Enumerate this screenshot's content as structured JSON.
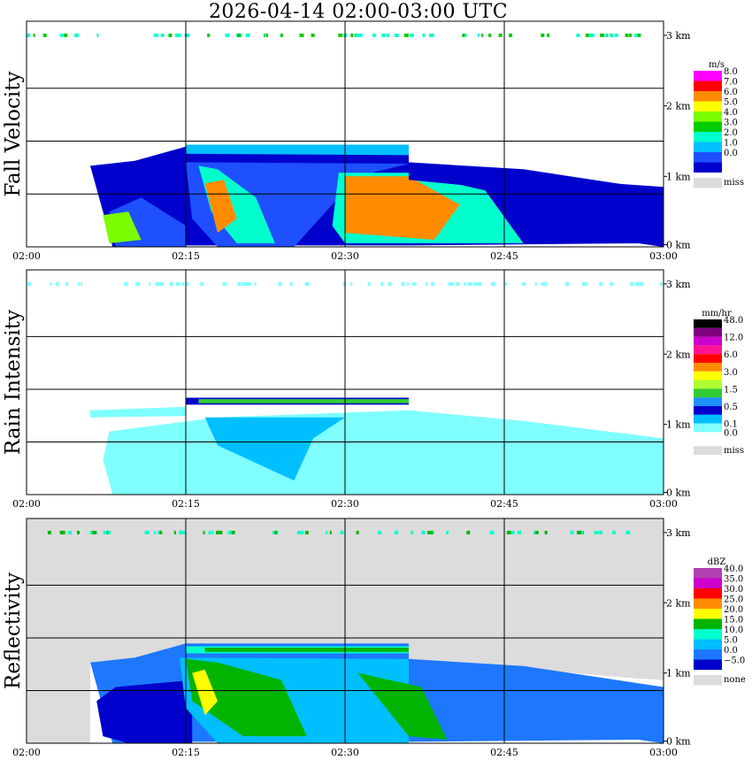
{
  "title": "2026-04-14  02:00-03:00 UTC",
  "x_ticks": [
    "02:00",
    "02:15",
    "02:30",
    "02:45",
    "03:00"
  ],
  "y_ticks": [
    "0 km",
    "1 km",
    "2 km",
    "3 km"
  ],
  "chart_data": [
    {
      "type": "heatmap",
      "ylabel": "Fall Velocity",
      "unit": "m/s",
      "x_range": [
        "02:00",
        "03:00"
      ],
      "y_range_km": [
        0,
        3.2
      ],
      "grid": true,
      "legend_placement": "right",
      "legend": [
        {
          "label": "8.0",
          "color": "#ff00ff"
        },
        {
          "label": "7.0",
          "color": "#ff0000"
        },
        {
          "label": "6.0",
          "color": "#ff8c00"
        },
        {
          "label": "5.0",
          "color": "#ffff00"
        },
        {
          "label": "4.0",
          "color": "#7cfc00"
        },
        {
          "label": "3.0",
          "color": "#00cc00"
        },
        {
          "label": "2.0",
          "color": "#00ffcc"
        },
        {
          "label": "1.0",
          "color": "#00bfff"
        },
        {
          "label": "0.0",
          "color": "#1e50ff"
        },
        {
          "label": "",
          "color": "#0000cd"
        },
        {
          "label": "miss",
          "color": "#dcdcdc"
        }
      ]
    },
    {
      "type": "heatmap",
      "ylabel": "Rain Intensity",
      "unit": "mm/hr",
      "x_range": [
        "02:00",
        "03:00"
      ],
      "y_range_km": [
        0,
        3.2
      ],
      "grid": true,
      "legend_placement": "right",
      "legend": [
        {
          "label": "48.0",
          "color": "#000000"
        },
        {
          "label": "",
          "color": "#800080"
        },
        {
          "label": "12.0",
          "color": "#cc00cc"
        },
        {
          "label": "",
          "color": "#ff1493"
        },
        {
          "label": "6.0",
          "color": "#ff0000"
        },
        {
          "label": "",
          "color": "#ff8c00"
        },
        {
          "label": "3.0",
          "color": "#ffff00"
        },
        {
          "label": "",
          "color": "#adff2f"
        },
        {
          "label": "1.5",
          "color": "#32cd32"
        },
        {
          "label": "",
          "color": "#1e90ff"
        },
        {
          "label": "0.5",
          "color": "#0000cd"
        },
        {
          "label": "",
          "color": "#00bfff"
        },
        {
          "label": "0.1",
          "color": "#7fffff"
        },
        {
          "label": "0.0",
          "color": "#ffffff"
        },
        {
          "label": "miss",
          "color": "#dcdcdc"
        }
      ]
    },
    {
      "type": "heatmap",
      "ylabel": "Reflectivity",
      "unit": "dBZ",
      "x_range": [
        "02:00",
        "03:00"
      ],
      "y_range_km": [
        0,
        3.2
      ],
      "grid": true,
      "legend_placement": "right",
      "legend": [
        {
          "label": "40.0",
          "color": "#b040b0"
        },
        {
          "label": "35.0",
          "color": "#cc00cc"
        },
        {
          "label": "30.0",
          "color": "#ff0000"
        },
        {
          "label": "25.0",
          "color": "#ff8c00"
        },
        {
          "label": "20.0",
          "color": "#ffff00"
        },
        {
          "label": "15.0",
          "color": "#00b400"
        },
        {
          "label": "10.0",
          "color": "#00ffcc"
        },
        {
          "label": "5.0",
          "color": "#00bfff"
        },
        {
          "label": "0.0",
          "color": "#1e78ff"
        },
        {
          "label": "−5.0",
          "color": "#0000cd"
        },
        {
          "label": "none",
          "color": "#dcdcdc"
        }
      ]
    }
  ]
}
